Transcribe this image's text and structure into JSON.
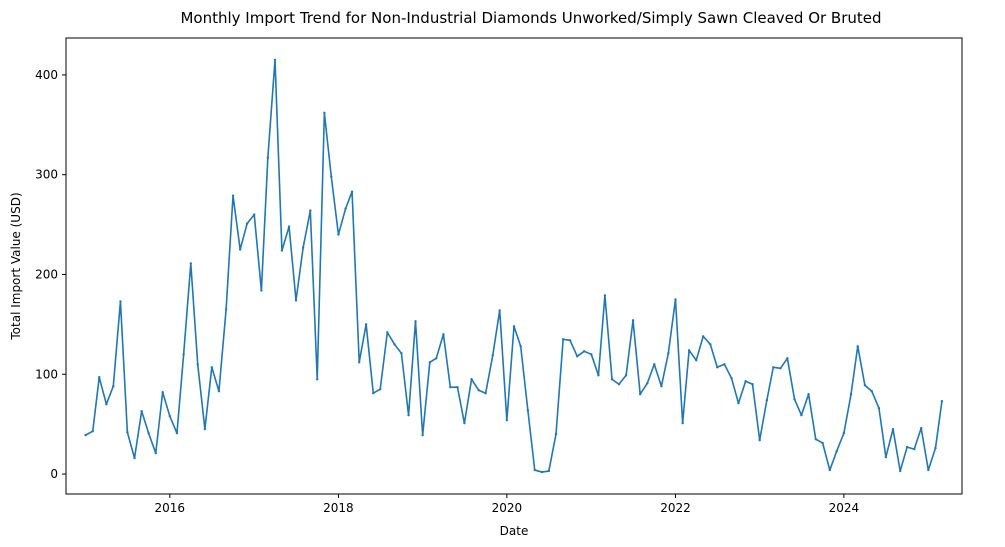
{
  "chart_data": {
    "type": "line",
    "title": "Monthly Import Trend for Non-Industrial Diamonds Unworked/Simply Sawn Cleaved Or Bruted",
    "xlabel": "Date",
    "ylabel": "Total Import Value (USD)",
    "x_ticks": [
      "2016",
      "2018",
      "2020",
      "2022",
      "2024"
    ],
    "y_ticks": [
      0,
      100,
      200,
      300,
      400
    ],
    "xlim": [
      "2014-10-08",
      "2025-05-27"
    ],
    "ylim": [
      -20,
      437
    ],
    "grid": false,
    "legend": "none",
    "line_color": "#1f77b4",
    "x": [
      "2015-01",
      "2015-02",
      "2015-03",
      "2015-04",
      "2015-05",
      "2015-06",
      "2015-07",
      "2015-08",
      "2015-09",
      "2015-10",
      "2015-11",
      "2015-12",
      "2016-01",
      "2016-02",
      "2016-03",
      "2016-04",
      "2016-05",
      "2016-06",
      "2016-07",
      "2016-08",
      "2016-09",
      "2016-10",
      "2016-11",
      "2016-12",
      "2017-01",
      "2017-02",
      "2017-03",
      "2017-04",
      "2017-05",
      "2017-06",
      "2017-07",
      "2017-08",
      "2017-09",
      "2017-10",
      "2017-11",
      "2017-12",
      "2018-01",
      "2018-02",
      "2018-03",
      "2018-04",
      "2018-05",
      "2018-06",
      "2018-07",
      "2018-08",
      "2018-09",
      "2018-10",
      "2018-11",
      "2018-12",
      "2019-01",
      "2019-02",
      "2019-03",
      "2019-04",
      "2019-05",
      "2019-06",
      "2019-07",
      "2019-08",
      "2019-09",
      "2019-10",
      "2019-11",
      "2019-12",
      "2020-01",
      "2020-02",
      "2020-03",
      "2020-04",
      "2020-05",
      "2020-06",
      "2020-07",
      "2020-08",
      "2020-09",
      "2020-10",
      "2020-11",
      "2020-12",
      "2021-01",
      "2021-02",
      "2021-03",
      "2021-04",
      "2021-05",
      "2021-06",
      "2021-07",
      "2021-08",
      "2021-09",
      "2021-10",
      "2021-11",
      "2021-12",
      "2022-01",
      "2022-02",
      "2022-03",
      "2022-04",
      "2022-05",
      "2022-06",
      "2022-07",
      "2022-08",
      "2022-09",
      "2022-10",
      "2022-11",
      "2022-12",
      "2023-01",
      "2023-02",
      "2023-03",
      "2023-04",
      "2023-05",
      "2023-06",
      "2023-07",
      "2023-08",
      "2023-09",
      "2023-10",
      "2023-11",
      "2023-12",
      "2024-01",
      "2024-02",
      "2024-03",
      "2024-04",
      "2024-05",
      "2024-06",
      "2024-07",
      "2024-08",
      "2024-09",
      "2024-10",
      "2024-11",
      "2024-12",
      "2025-01",
      "2025-02",
      "2025-03"
    ],
    "values": [
      39,
      43,
      97,
      70,
      88,
      173,
      42,
      16,
      63,
      41,
      21,
      82,
      58,
      41,
      120,
      211,
      110,
      45,
      107,
      83,
      165,
      279,
      225,
      251,
      260,
      184,
      317,
      415,
      224,
      248,
      174,
      227,
      264,
      95,
      362,
      298,
      240,
      266,
      283,
      112,
      150,
      81,
      85,
      142,
      130,
      121,
      59,
      153,
      39,
      112,
      116,
      140,
      87,
      87,
      51,
      95,
      84,
      81,
      119,
      164,
      54,
      148,
      128,
      64,
      4,
      2,
      3,
      40,
      135,
      134,
      118,
      123,
      120,
      99,
      179,
      95,
      90,
      99,
      154,
      80,
      91,
      110,
      88,
      121,
      175,
      51,
      124,
      114,
      138,
      130,
      107,
      110,
      96,
      71,
      93,
      90,
      34,
      74,
      107,
      106,
      116,
      75,
      59,
      80,
      35,
      31,
      4,
      23,
      41,
      80,
      128,
      89,
      83,
      66,
      17,
      45,
      3,
      27,
      25,
      46,
      4,
      26,
      73
    ]
  }
}
